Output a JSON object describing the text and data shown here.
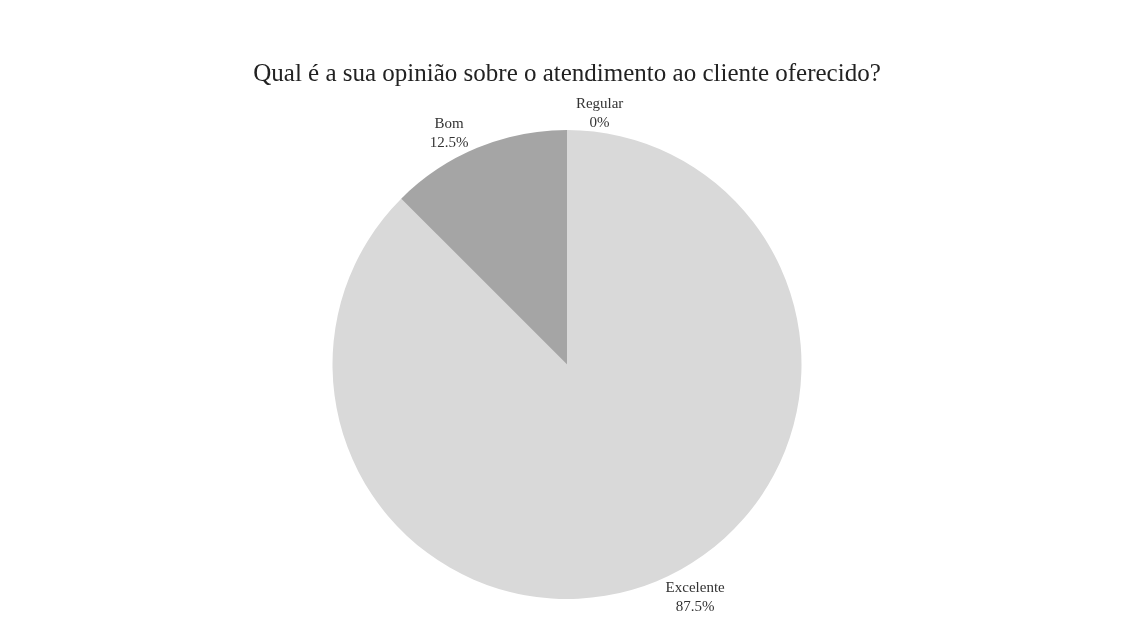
{
  "chart_data": {
    "type": "pie",
    "title": "Qual é a sua opinião sobre o atendimento ao cliente oferecido?",
    "categories": [
      "Excelente",
      "Bom",
      "Regular"
    ],
    "values": [
      87.5,
      12.5,
      0
    ],
    "value_labels": [
      "87.5%",
      "12.5%",
      "0%"
    ],
    "colors": [
      "#d9d9d9",
      "#a5a5a5",
      "#7f7f7f"
    ],
    "legend": false
  }
}
